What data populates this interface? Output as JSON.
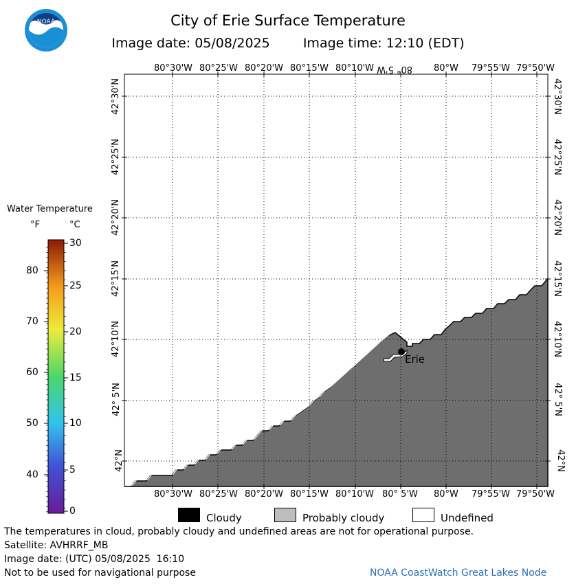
{
  "header": {
    "logo_text": "NOAA",
    "title": "City of Erie Surface Temperature",
    "image_date": "Image date: 05/08/2025",
    "image_time": "Image time: 12:10 (EDT)"
  },
  "map": {
    "top_lon_labels": [
      "80°30'W",
      "80°25'W",
      "80°20'W",
      "80°15'W",
      "80°10'W",
      "80° 5'W",
      "80°W",
      "79°55'W",
      "79°50'W"
    ],
    "bottom_lon_labels": [
      "80°30'W",
      "80°25'W",
      "80°20'W",
      "80°15'W",
      "80°10'W",
      "80° 5'W",
      "80°W",
      "79°55'W",
      "79°50'W"
    ],
    "lat_labels": [
      "42°30'N",
      "42°25'N",
      "42°20'N",
      "42°15'N",
      "42°10'N",
      "42° 5'N",
      "42°N"
    ],
    "city_label": "Erie",
    "land_color": "#6e6e6e",
    "water_color": "#ffffff"
  },
  "legend": {
    "title": "Water Temperature",
    "unit_f": "°F",
    "unit_c": "°C",
    "f_ticks": [
      "80",
      "70",
      "60",
      "50",
      "40"
    ],
    "c_ticks": [
      "30",
      "25",
      "20",
      "15",
      "10",
      "5",
      "0"
    ]
  },
  "key": {
    "cloudy": "Cloudy",
    "probably_cloudy": "Probably cloudy",
    "undefined": "Undefined"
  },
  "footer": {
    "disclaimer": "The temperatures in cloud, probably cloudy and undefined areas are not for operational purpose.",
    "satellite": "Satellite: AVHRRF_MB",
    "utc_date": "Image date: (UTC) 05/08/2025  16:10",
    "nav_warning": "Not to be used for navigational purpose",
    "credit": "NOAA CoastWatch Great Lakes Node"
  }
}
